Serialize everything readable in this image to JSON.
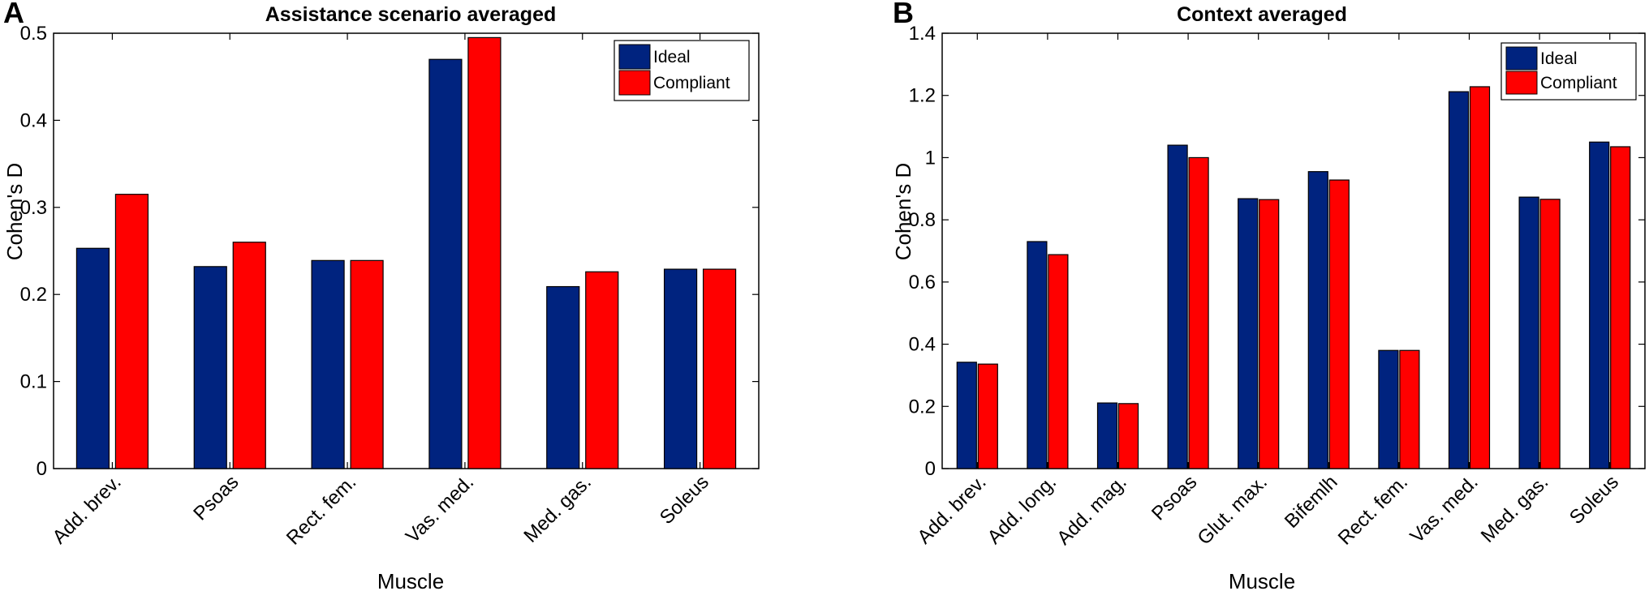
{
  "colors": {
    "series1": "#00237f",
    "series2": "#ff0000"
  },
  "chart_data": [
    {
      "panel": "A",
      "type": "bar",
      "title": "Assistance scenario averaged",
      "xlabel": "Muscle",
      "ylabel": "Cohen's D",
      "ylim": [
        0,
        0.5
      ],
      "yticks": [
        "0",
        "0.1",
        "0.2",
        "0.3",
        "0.4",
        "0.5"
      ],
      "legend": "top-right",
      "categories": [
        "Add. brev.",
        "Psoas",
        "Rect. fem.",
        "Vas. med.",
        "Med. gas.",
        "Soleus"
      ],
      "series": [
        {
          "name": "Ideal",
          "values": [
            0.253,
            0.232,
            0.239,
            0.47,
            0.209,
            0.229
          ]
        },
        {
          "name": "Compliant",
          "values": [
            0.315,
            0.26,
            0.239,
            0.495,
            0.226,
            0.229
          ]
        }
      ]
    },
    {
      "panel": "B",
      "type": "bar",
      "title": "Context averaged",
      "xlabel": "Muscle",
      "ylabel": "Cohen's D",
      "ylim": [
        0,
        1.4
      ],
      "yticks": [
        "0",
        "0.2",
        "0.4",
        "0.6",
        "0.8",
        "1",
        "1.2",
        "1.4"
      ],
      "legend": "top-right",
      "categories": [
        "Add. brev.",
        "Add. long.",
        "Add. mag.",
        "Psoas",
        "Glut. max.",
        "Bifemlh",
        "Rect. fem.",
        "Vas. med.",
        "Med. gas.",
        "Soleus"
      ],
      "series": [
        {
          "name": "Ideal",
          "values": [
            0.342,
            0.73,
            0.211,
            1.04,
            0.868,
            0.955,
            0.38,
            1.212,
            0.873,
            1.05
          ]
        },
        {
          "name": "Compliant",
          "values": [
            0.336,
            0.688,
            0.209,
            1.0,
            0.865,
            0.928,
            0.38,
            1.228,
            0.866,
            1.035
          ]
        }
      ]
    }
  ]
}
